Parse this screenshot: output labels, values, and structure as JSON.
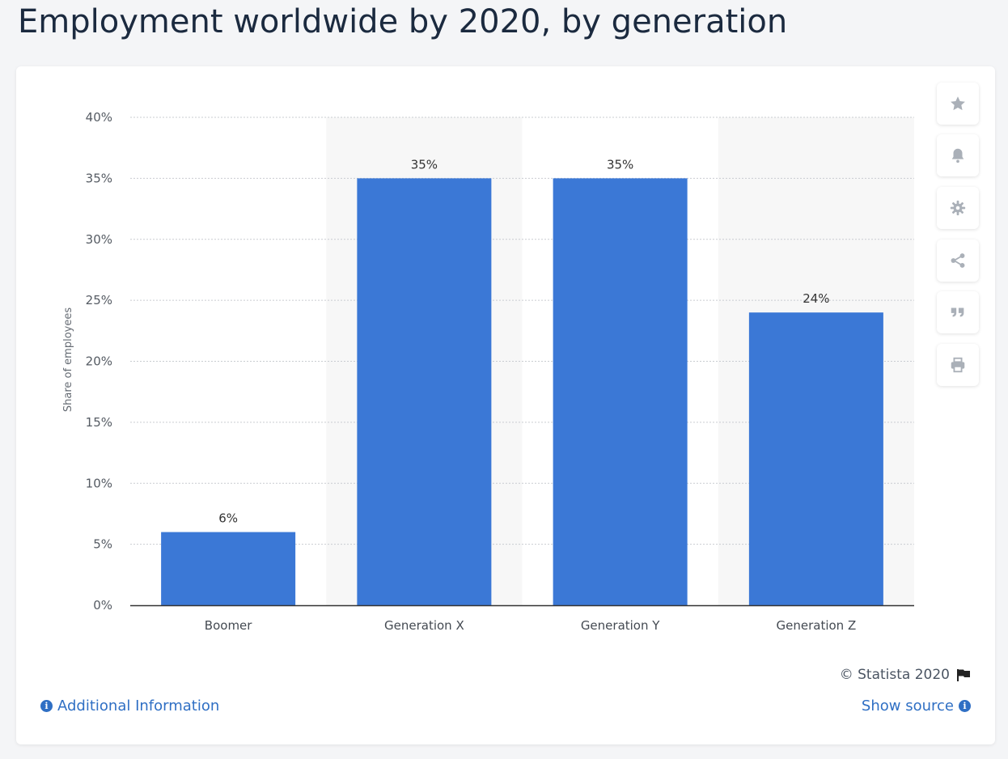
{
  "header": {
    "title": "Employment worldwide by 2020, by generation"
  },
  "colors": {
    "bar": "#3b78d6",
    "band": "#f7f7f7",
    "grid": "#c9ccd1",
    "axis": "#333333",
    "link": "#2f6fc4"
  },
  "toolbar": [
    {
      "name": "favorite",
      "icon": "star-icon"
    },
    {
      "name": "notification",
      "icon": "bell-icon"
    },
    {
      "name": "settings",
      "icon": "gear-icon"
    },
    {
      "name": "share",
      "icon": "share-icon"
    },
    {
      "name": "cite",
      "icon": "quote-icon"
    },
    {
      "name": "print",
      "icon": "print-icon"
    }
  ],
  "footer": {
    "copyright": "© Statista 2020",
    "additional_info": "Additional Information",
    "show_source": "Show source"
  },
  "chart_data": {
    "type": "bar",
    "title": "Employment worldwide by 2020, by generation",
    "ylabel": "Share of employees",
    "xlabel": "",
    "categories": [
      "Boomer",
      "Generation X",
      "Generation Y",
      "Generation Z"
    ],
    "values": [
      6,
      35,
      35,
      24
    ],
    "value_labels": [
      "6%",
      "35%",
      "35%",
      "24%"
    ],
    "ylim": [
      0,
      40
    ],
    "yticks": [
      0,
      5,
      10,
      15,
      20,
      25,
      30,
      35,
      40
    ],
    "ytick_labels": [
      "0%",
      "5%",
      "10%",
      "15%",
      "20%",
      "25%",
      "30%",
      "35%",
      "40%"
    ],
    "grid": true,
    "legend": "none"
  }
}
